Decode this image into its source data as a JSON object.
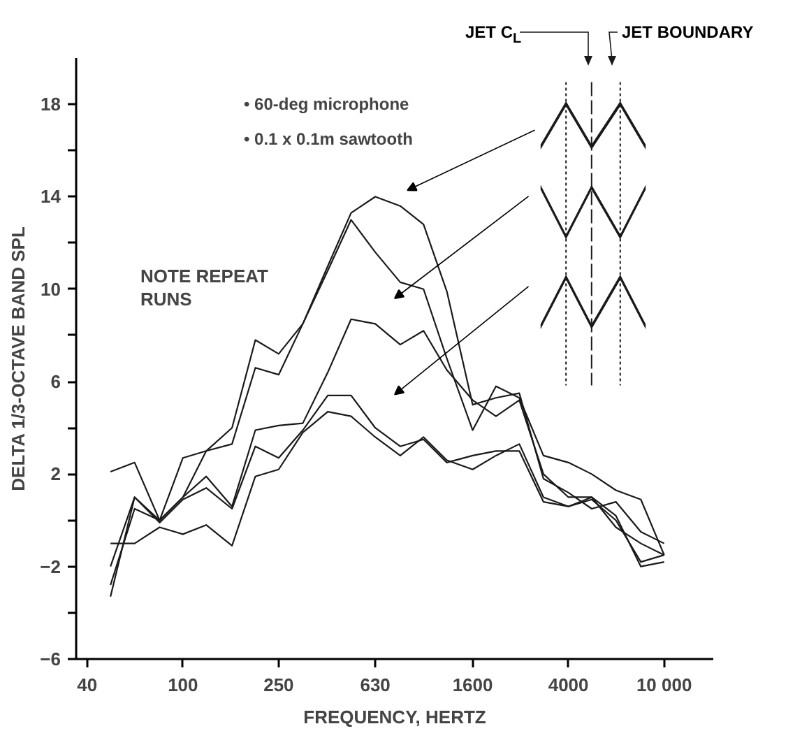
{
  "chart_data": {
    "type": "line",
    "xlabel": "FREQUENCY, HERTZ",
    "ylabel": "DELTA 1/3-OCTAVE BAND SPL",
    "x": [
      50,
      63,
      80,
      100,
      125,
      160,
      200,
      250,
      315,
      400,
      500,
      630,
      800,
      1000,
      1250,
      1600,
      2000,
      2500,
      3150,
      4000,
      5000,
      6300,
      8000,
      10000
    ],
    "series": [
      {
        "color": "#1a1a1a",
        "values": [
          2.1,
          2.5,
          0.0,
          1.0,
          3.0,
          4.0,
          7.8,
          7.2,
          8.5,
          11.0,
          13.3,
          14.0,
          13.6,
          12.8,
          9.9,
          5.0,
          5.3,
          5.5,
          1.8,
          1.2,
          0.5,
          0.8,
          -0.5,
          -1.0
        ]
      },
      {
        "color": "#1a1a1a",
        "values": [
          -2.0,
          1.0,
          0.0,
          2.7,
          3.0,
          3.3,
          6.6,
          6.3,
          8.5,
          10.8,
          13.0,
          11.6,
          10.3,
          10.0,
          7.0,
          3.9,
          5.8,
          5.3,
          2.8,
          2.5,
          2.0,
          1.3,
          0.9,
          -1.5
        ]
      },
      {
        "color": "#1a1a1a",
        "values": [
          -2.8,
          0.5,
          0.0,
          1.0,
          1.9,
          0.6,
          3.9,
          4.1,
          4.2,
          6.4,
          8.7,
          8.5,
          7.6,
          8.2,
          6.5,
          5.2,
          4.5,
          5.2,
          2.0,
          1.0,
          1.0,
          -0.3,
          -1.0,
          -1.5
        ]
      },
      {
        "color": "#1a1a1a",
        "values": [
          -3.3,
          1.0,
          -0.1,
          0.9,
          1.4,
          0.5,
          3.2,
          2.7,
          3.9,
          5.4,
          5.4,
          4.0,
          3.2,
          3.5,
          2.5,
          2.8,
          3.0,
          3.0,
          0.8,
          0.6,
          0.9,
          0.0,
          -1.8,
          -1.5
        ]
      },
      {
        "color": "#1a1a1a",
        "values": [
          -1.0,
          -1.0,
          -0.3,
          -0.6,
          -0.2,
          -1.1,
          1.9,
          2.2,
          3.8,
          4.7,
          4.5,
          3.6,
          2.8,
          3.6,
          2.6,
          2.2,
          2.8,
          3.3,
          1.0,
          0.6,
          1.0,
          0.2,
          -2.0,
          -1.8
        ]
      }
    ],
    "log": "x",
    "xlim": [
      36,
      16000
    ],
    "ylim": [
      -6,
      20
    ],
    "xticks": [
      40,
      100,
      250,
      630,
      1600,
      4000,
      {
        "value": 10000,
        "label": "10 000"
      }
    ],
    "yticks": [
      -6,
      {
        "value": -4,
        "label": null
      },
      -2,
      {
        "value": 0,
        "label": null
      },
      2,
      {
        "value": 4,
        "label": null
      },
      6,
      {
        "value": 8,
        "label": null
      },
      10,
      {
        "value": 12,
        "label": null
      },
      14,
      {
        "value": 16,
        "label": null
      },
      18
    ],
    "grid": false,
    "marker": "none",
    "line_style": "solid",
    "annotations": [
      "• 60-deg microphone",
      "• 0.1 x 0.1m sawtooth",
      "NOTE REPEAT RUNS",
      "JET C$_{L}$",
      "JET BOUNDARY"
    ]
  }
}
